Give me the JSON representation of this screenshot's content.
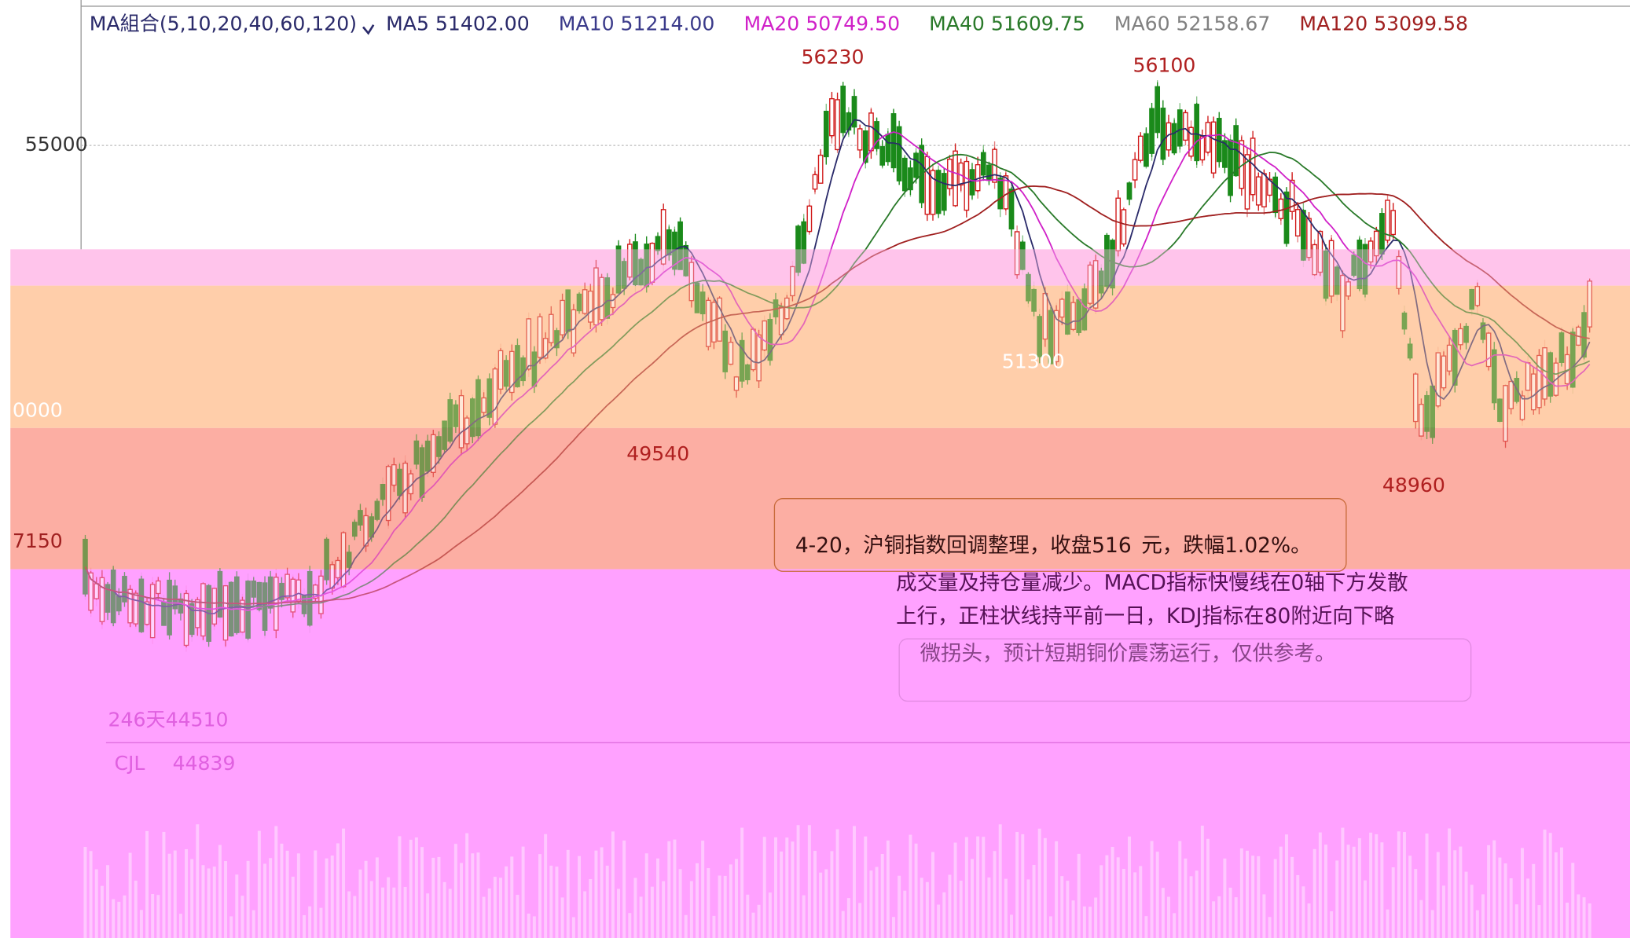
{
  "header": {
    "selector": "MA組合(5,10,20,40,60,120)",
    "items": [
      {
        "label": "MA5 51402.00",
        "color": "#2a2a6a"
      },
      {
        "label": "MA10 51214.00",
        "color": "#3a3a8a"
      },
      {
        "label": "MA20 50749.50",
        "color": "#d020c8"
      },
      {
        "label": "MA40 51609.75",
        "color": "#2a7a2a"
      },
      {
        "label": "MA60 52158.67",
        "color": "#808080"
      },
      {
        "label": "MA120 53099.58",
        "color": "#a02020"
      }
    ]
  },
  "axis": {
    "labels": [
      "55000",
      "0000",
      "7150"
    ]
  },
  "peaks": [
    "56230",
    "56100",
    "49540",
    "51300",
    "48960"
  ],
  "footer": {
    "range": "246天44510",
    "volume": "CJL",
    "volume_value": "44839"
  },
  "note": {
    "lines": [
      "4-20，沪铜指数回调整理，收盘516",
      "元，跌幅1.02%。",
      "成交量及持仓量减少。MACD指标快慢线在0轴下方发散",
      "上行，正柱状线持平前一日，KDJ指标在80附近向下略",
      "微拐头，预计短期铜价震荡运行，仅供参考。"
    ]
  }
}
